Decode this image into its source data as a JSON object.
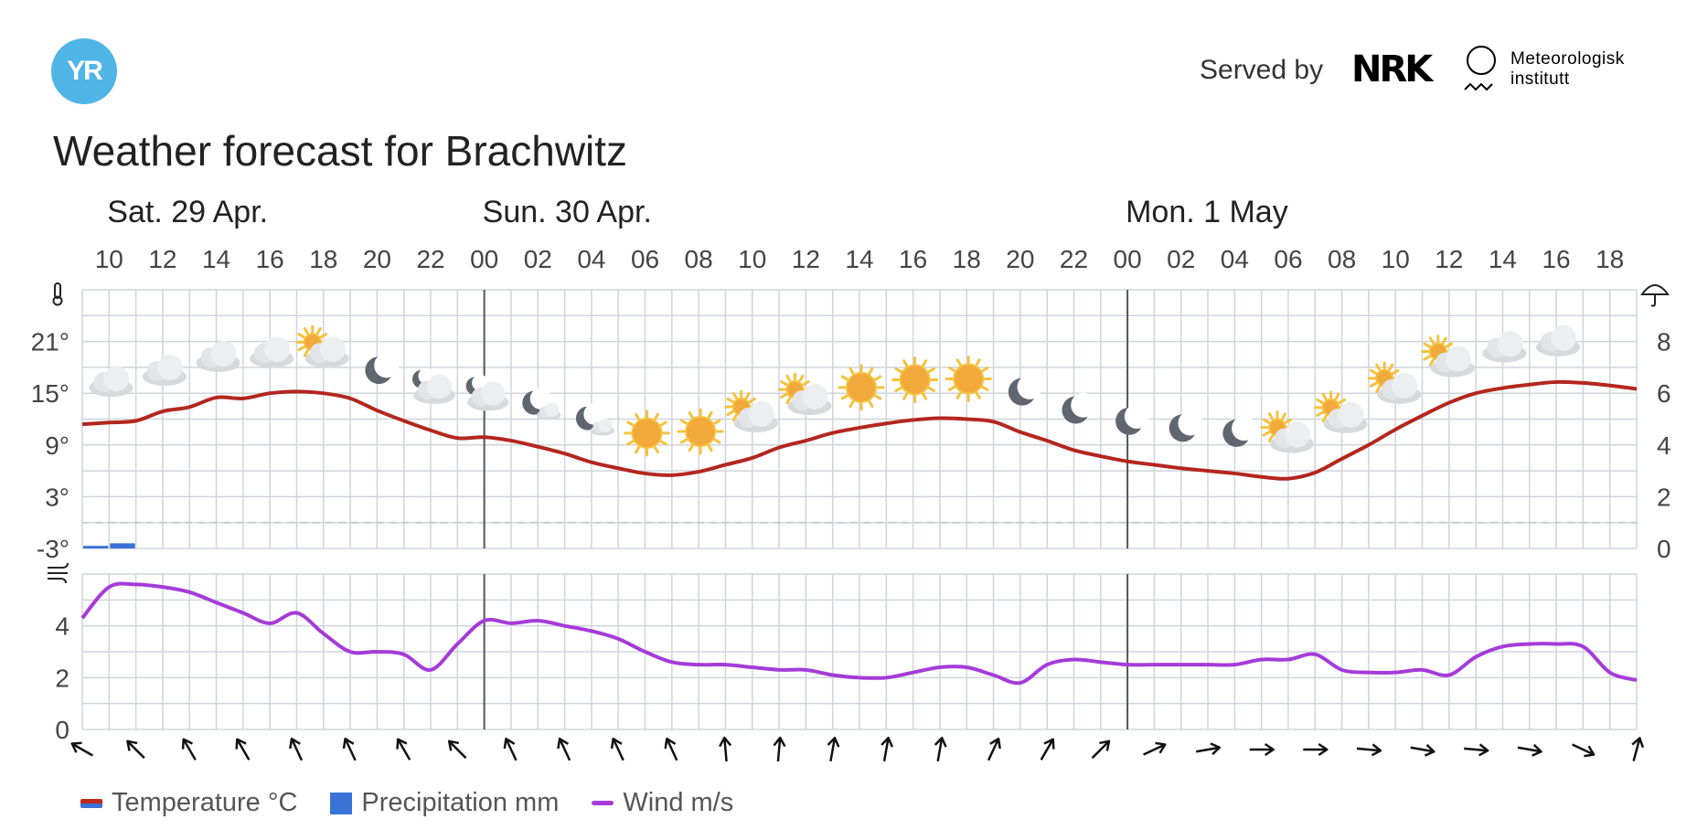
{
  "header": {
    "logo_text": "YR",
    "served_by": "Served by",
    "nrk_logo": "NRK",
    "met_line1": "Meteorologisk",
    "met_line2": "institutt"
  },
  "title": "Weather forecast for Brachwitz",
  "legend": {
    "temperature": "Temperature °C",
    "precipitation": "Precipitation mm",
    "wind": "Wind m/s"
  },
  "colors": {
    "temperature": "#b3261e",
    "precipitation": "#3a72d6",
    "wind": "#a53bd9",
    "grid": "#cfd5db",
    "brand": "#4fb4e6"
  },
  "chart_data": {
    "type": "line",
    "x_unit": "hour",
    "day_labels": [
      {
        "label": "Sat. 29 Apr.",
        "at_hour": 10
      },
      {
        "label": "Sun. 30 Apr.",
        "at_hour": 24
      },
      {
        "label": "Mon. 1 May",
        "at_hour": 48
      }
    ],
    "hour_ticks": [
      "10",
      "12",
      "14",
      "16",
      "18",
      "20",
      "22",
      "00",
      "02",
      "04",
      "06",
      "08",
      "10",
      "12",
      "14",
      "16",
      "18",
      "20",
      "22",
      "00",
      "02",
      "04",
      "06",
      "08",
      "10",
      "12",
      "14",
      "16",
      "18"
    ],
    "temperature": {
      "y_ticks": [
        "21°",
        "15°",
        "9°",
        "3°",
        "-3°"
      ],
      "ylim": [
        -3,
        27
      ],
      "values": [
        [
          9,
          11.4
        ],
        [
          10,
          11.6
        ],
        [
          11,
          11.8
        ],
        [
          12,
          12.9
        ],
        [
          13,
          13.4
        ],
        [
          14,
          14.5
        ],
        [
          15,
          14.4
        ],
        [
          16,
          15.0
        ],
        [
          17,
          15.2
        ],
        [
          18,
          15.0
        ],
        [
          19,
          14.4
        ],
        [
          20,
          13.0
        ],
        [
          21,
          11.8
        ],
        [
          22,
          10.7
        ],
        [
          23,
          9.8
        ],
        [
          24,
          9.9
        ],
        [
          25,
          9.5
        ],
        [
          26,
          8.8
        ],
        [
          27,
          8.0
        ],
        [
          28,
          7.0
        ],
        [
          29,
          6.3
        ],
        [
          30,
          5.7
        ],
        [
          31,
          5.5
        ],
        [
          32,
          5.9
        ],
        [
          33,
          6.7
        ],
        [
          34,
          7.5
        ],
        [
          35,
          8.7
        ],
        [
          36,
          9.5
        ],
        [
          37,
          10.4
        ],
        [
          38,
          11.0
        ],
        [
          39,
          11.5
        ],
        [
          40,
          11.9
        ],
        [
          41,
          12.1
        ],
        [
          42,
          12.0
        ],
        [
          43,
          11.7
        ],
        [
          44,
          10.5
        ],
        [
          45,
          9.5
        ],
        [
          46,
          8.4
        ],
        [
          47,
          7.7
        ],
        [
          48,
          7.1
        ],
        [
          49,
          6.7
        ],
        [
          50,
          6.3
        ],
        [
          51,
          6.0
        ],
        [
          52,
          5.7
        ],
        [
          53,
          5.3
        ],
        [
          54,
          5.1
        ],
        [
          55,
          5.8
        ],
        [
          56,
          7.4
        ],
        [
          57,
          9.0
        ],
        [
          58,
          10.8
        ],
        [
          59,
          12.4
        ],
        [
          60,
          13.9
        ],
        [
          61,
          15.0
        ],
        [
          62,
          15.6
        ],
        [
          63,
          16.0
        ],
        [
          64,
          16.3
        ],
        [
          65,
          16.2
        ],
        [
          66,
          15.9
        ],
        [
          67,
          15.5
        ]
      ]
    },
    "precipitation": {
      "y_ticks": [
        "8",
        "6",
        "4",
        "2",
        "0"
      ],
      "ylim": [
        0,
        10
      ],
      "values": [
        [
          9,
          0.1
        ],
        [
          10,
          0.2
        ]
      ]
    },
    "wind": {
      "y_ticks": [
        "4",
        "2",
        "0"
      ],
      "ylim": [
        0,
        6
      ],
      "values": [
        [
          9,
          4.3
        ],
        [
          10,
          5.5
        ],
        [
          11,
          5.6
        ],
        [
          12,
          5.5
        ],
        [
          13,
          5.3
        ],
        [
          14,
          4.9
        ],
        [
          15,
          4.5
        ],
        [
          16,
          4.1
        ],
        [
          17,
          4.5
        ],
        [
          18,
          3.7
        ],
        [
          19,
          3.0
        ],
        [
          20,
          3.0
        ],
        [
          21,
          2.9
        ],
        [
          22,
          2.3
        ],
        [
          23,
          3.3
        ],
        [
          24,
          4.2
        ],
        [
          25,
          4.1
        ],
        [
          26,
          4.2
        ],
        [
          27,
          4.0
        ],
        [
          28,
          3.8
        ],
        [
          29,
          3.5
        ],
        [
          30,
          3.0
        ],
        [
          31,
          2.6
        ],
        [
          32,
          2.5
        ],
        [
          33,
          2.5
        ],
        [
          34,
          2.4
        ],
        [
          35,
          2.3
        ],
        [
          36,
          2.3
        ],
        [
          37,
          2.1
        ],
        [
          38,
          2.0
        ],
        [
          39,
          2.0
        ],
        [
          40,
          2.2
        ],
        [
          41,
          2.4
        ],
        [
          42,
          2.4
        ],
        [
          43,
          2.1
        ],
        [
          44,
          1.8
        ],
        [
          45,
          2.5
        ],
        [
          46,
          2.7
        ],
        [
          47,
          2.6
        ],
        [
          48,
          2.5
        ],
        [
          49,
          2.5
        ],
        [
          50,
          2.5
        ],
        [
          51,
          2.5
        ],
        [
          52,
          2.5
        ],
        [
          53,
          2.7
        ],
        [
          54,
          2.7
        ],
        [
          55,
          2.9
        ],
        [
          56,
          2.3
        ],
        [
          57,
          2.2
        ],
        [
          58,
          2.2
        ],
        [
          59,
          2.3
        ],
        [
          60,
          2.1
        ],
        [
          61,
          2.8
        ],
        [
          62,
          3.2
        ],
        [
          63,
          3.3
        ],
        [
          64,
          3.3
        ],
        [
          65,
          3.2
        ],
        [
          66,
          2.2
        ],
        [
          67,
          1.9
        ]
      ]
    },
    "weather_symbols": [
      {
        "hour": 10,
        "icon": "cloudy"
      },
      {
        "hour": 12,
        "icon": "cloudy"
      },
      {
        "hour": 14,
        "icon": "cloudy"
      },
      {
        "hour": 16,
        "icon": "cloudy"
      },
      {
        "hour": 18,
        "icon": "partly-cloudy-day"
      },
      {
        "hour": 20,
        "icon": "clear-night"
      },
      {
        "hour": 22,
        "icon": "partly-cloudy-night"
      },
      {
        "hour": 24,
        "icon": "partly-cloudy-night"
      },
      {
        "hour": 26,
        "icon": "fair-night"
      },
      {
        "hour": 28,
        "icon": "fair-night"
      },
      {
        "hour": 30,
        "icon": "clear-day"
      },
      {
        "hour": 32,
        "icon": "clear-day"
      },
      {
        "hour": 34,
        "icon": "partly-cloudy-day"
      },
      {
        "hour": 36,
        "icon": "partly-cloudy-day"
      },
      {
        "hour": 38,
        "icon": "clear-day"
      },
      {
        "hour": 40,
        "icon": "clear-day"
      },
      {
        "hour": 42,
        "icon": "clear-day"
      },
      {
        "hour": 44,
        "icon": "clear-night"
      },
      {
        "hour": 46,
        "icon": "clear-night"
      },
      {
        "hour": 48,
        "icon": "clear-night"
      },
      {
        "hour": 50,
        "icon": "clear-night"
      },
      {
        "hour": 52,
        "icon": "clear-night"
      },
      {
        "hour": 54,
        "icon": "partly-cloudy-day"
      },
      {
        "hour": 56,
        "icon": "partly-cloudy-day"
      },
      {
        "hour": 58,
        "icon": "partly-cloudy-day"
      },
      {
        "hour": 60,
        "icon": "partly-cloudy-day"
      },
      {
        "hour": 62,
        "icon": "cloudy"
      },
      {
        "hour": 64,
        "icon": "cloudy"
      }
    ],
    "wind_direction_deg": [
      {
        "hour": 9,
        "deg": 300
      },
      {
        "hour": 11,
        "deg": 315
      },
      {
        "hour": 13,
        "deg": 330
      },
      {
        "hour": 15,
        "deg": 330
      },
      {
        "hour": 17,
        "deg": 335
      },
      {
        "hour": 19,
        "deg": 335
      },
      {
        "hour": 21,
        "deg": 330
      },
      {
        "hour": 23,
        "deg": 315
      },
      {
        "hour": 25,
        "deg": 335
      },
      {
        "hour": 27,
        "deg": 335
      },
      {
        "hour": 29,
        "deg": 335
      },
      {
        "hour": 31,
        "deg": 335
      },
      {
        "hour": 33,
        "deg": 355
      },
      {
        "hour": 35,
        "deg": 5
      },
      {
        "hour": 37,
        "deg": 10
      },
      {
        "hour": 39,
        "deg": 10
      },
      {
        "hour": 41,
        "deg": 10
      },
      {
        "hour": 43,
        "deg": 25
      },
      {
        "hour": 45,
        "deg": 30
      },
      {
        "hour": 47,
        "deg": 45
      },
      {
        "hour": 49,
        "deg": 65
      },
      {
        "hour": 51,
        "deg": 80
      },
      {
        "hour": 53,
        "deg": 90
      },
      {
        "hour": 55,
        "deg": 90
      },
      {
        "hour": 57,
        "deg": 95
      },
      {
        "hour": 59,
        "deg": 100
      },
      {
        "hour": 61,
        "deg": 95
      },
      {
        "hour": 63,
        "deg": 100
      },
      {
        "hour": 65,
        "deg": 115
      },
      {
        "hour": 67,
        "deg": 15
      }
    ]
  }
}
